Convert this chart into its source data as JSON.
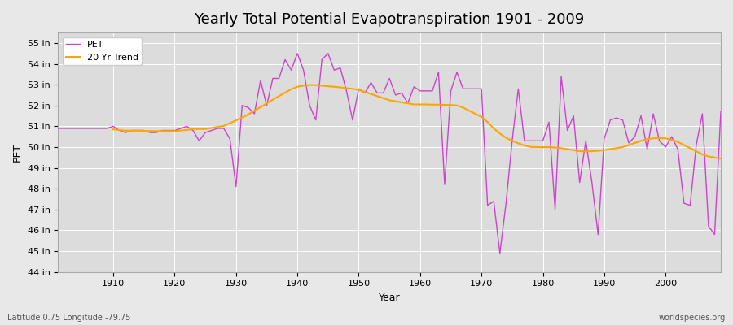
{
  "title": "Yearly Total Potential Evapotranspiration 1901 - 2009",
  "xlabel": "Year",
  "ylabel": "PET",
  "bottom_left": "Latitude 0.75 Longitude -79.75",
  "bottom_right": "worldspecies.org",
  "pet_color": "#CC44CC",
  "trend_color": "#FFA500",
  "background_color": "#E8E8E8",
  "plot_bg_color": "#DCDCDC",
  "ylim": [
    44,
    55.5
  ],
  "yticks": [
    44,
    45,
    46,
    47,
    48,
    49,
    50,
    51,
    52,
    53,
    54,
    55
  ],
  "years": [
    1901,
    1902,
    1903,
    1904,
    1905,
    1906,
    1907,
    1908,
    1909,
    1910,
    1911,
    1912,
    1913,
    1914,
    1915,
    1916,
    1917,
    1918,
    1919,
    1920,
    1921,
    1922,
    1923,
    1924,
    1925,
    1926,
    1927,
    1928,
    1929,
    1930,
    1931,
    1932,
    1933,
    1934,
    1935,
    1936,
    1937,
    1938,
    1939,
    1940,
    1941,
    1942,
    1943,
    1944,
    1945,
    1946,
    1947,
    1948,
    1949,
    1950,
    1951,
    1952,
    1953,
    1954,
    1955,
    1956,
    1957,
    1958,
    1959,
    1960,
    1961,
    1962,
    1963,
    1964,
    1965,
    1966,
    1967,
    1968,
    1969,
    1970,
    1971,
    1972,
    1973,
    1974,
    1975,
    1976,
    1977,
    1978,
    1979,
    1980,
    1981,
    1982,
    1983,
    1984,
    1985,
    1986,
    1987,
    1988,
    1989,
    1990,
    1991,
    1992,
    1993,
    1994,
    1995,
    1996,
    1997,
    1998,
    1999,
    2000,
    2001,
    2002,
    2003,
    2004,
    2005,
    2006,
    2007,
    2008,
    2009
  ],
  "pet_values": [
    50.9,
    50.9,
    50.9,
    50.9,
    50.9,
    50.9,
    50.9,
    50.9,
    50.9,
    51.0,
    50.8,
    50.7,
    50.8,
    50.8,
    50.8,
    50.7,
    50.7,
    50.8,
    50.8,
    50.8,
    50.9,
    51.0,
    50.8,
    50.3,
    50.7,
    50.8,
    50.9,
    50.9,
    50.4,
    48.1,
    52.0,
    51.9,
    51.6,
    53.2,
    52.0,
    53.3,
    53.3,
    54.2,
    53.7,
    54.5,
    53.7,
    52.0,
    51.3,
    54.2,
    54.5,
    53.7,
    53.8,
    52.7,
    51.3,
    52.8,
    52.6,
    53.1,
    52.6,
    52.6,
    53.3,
    52.5,
    52.6,
    52.1,
    52.9,
    52.7,
    52.7,
    52.7,
    53.6,
    48.2,
    52.7,
    53.6,
    52.8,
    52.8,
    52.8,
    52.8,
    47.2,
    47.4,
    44.9,
    47.3,
    50.3,
    52.8,
    50.3,
    50.3,
    50.3,
    50.3,
    51.2,
    47.0,
    53.4,
    50.8,
    51.5,
    48.3,
    50.3,
    48.3,
    45.8,
    50.4,
    51.3,
    51.4,
    51.3,
    50.2,
    50.5,
    51.5,
    49.9,
    51.6,
    50.3,
    50.0,
    50.5,
    49.9,
    47.3,
    47.2,
    50.1,
    51.6,
    46.2,
    45.8,
    51.7
  ],
  "trend_years": [
    1910,
    1911,
    1912,
    1913,
    1914,
    1915,
    1916,
    1917,
    1918,
    1919,
    1920,
    1921,
    1922,
    1923,
    1924,
    1925,
    1926,
    1927,
    1928,
    1929,
    1930,
    1931,
    1932,
    1933,
    1934,
    1935,
    1936,
    1937,
    1938,
    1939,
    1940,
    1941,
    1942,
    1943,
    1944,
    1945,
    1946,
    1947,
    1948,
    1949,
    1950,
    1951,
    1952,
    1953,
    1954,
    1955,
    1956,
    1957,
    1958,
    1959,
    1960,
    1961,
    1962,
    1963,
    1964,
    1965,
    1966,
    1967,
    1968,
    1969,
    1970,
    1971,
    1972,
    1973,
    1974,
    1975,
    1976,
    1977,
    1978,
    1979,
    1980,
    1981,
    1982,
    1983,
    1984,
    1985,
    1986,
    1987,
    1988,
    1989,
    1990,
    1991,
    1992,
    1993,
    1994,
    1995,
    1996,
    1997,
    1998,
    1999,
    2000,
    2001,
    2002,
    2003,
    2004,
    2005,
    2006,
    2007,
    2008,
    2009
  ],
  "trend_values": [
    50.85,
    50.82,
    50.79,
    50.79,
    50.79,
    50.78,
    50.77,
    50.77,
    50.77,
    50.77,
    50.77,
    50.8,
    50.82,
    50.87,
    50.87,
    50.87,
    50.92,
    50.97,
    51.02,
    51.15,
    51.28,
    51.42,
    51.57,
    51.75,
    51.92,
    52.1,
    52.28,
    52.45,
    52.62,
    52.78,
    52.9,
    52.95,
    52.98,
    52.98,
    52.95,
    52.92,
    52.9,
    52.87,
    52.83,
    52.8,
    52.75,
    52.65,
    52.55,
    52.45,
    52.35,
    52.25,
    52.2,
    52.15,
    52.1,
    52.05,
    52.05,
    52.05,
    52.04,
    52.04,
    52.03,
    52.02,
    52.0,
    51.9,
    51.75,
    51.6,
    51.45,
    51.2,
    50.9,
    50.65,
    50.45,
    50.3,
    50.18,
    50.08,
    50.01,
    50.0,
    50.0,
    50.0,
    49.98,
    49.95,
    49.9,
    49.85,
    49.8,
    49.8,
    49.8,
    49.82,
    49.85,
    49.9,
    49.95,
    50.0,
    50.1,
    50.2,
    50.3,
    50.38,
    50.42,
    50.43,
    50.42,
    50.35,
    50.25,
    50.1,
    49.95,
    49.8,
    49.65,
    49.55,
    49.5,
    49.45
  ]
}
